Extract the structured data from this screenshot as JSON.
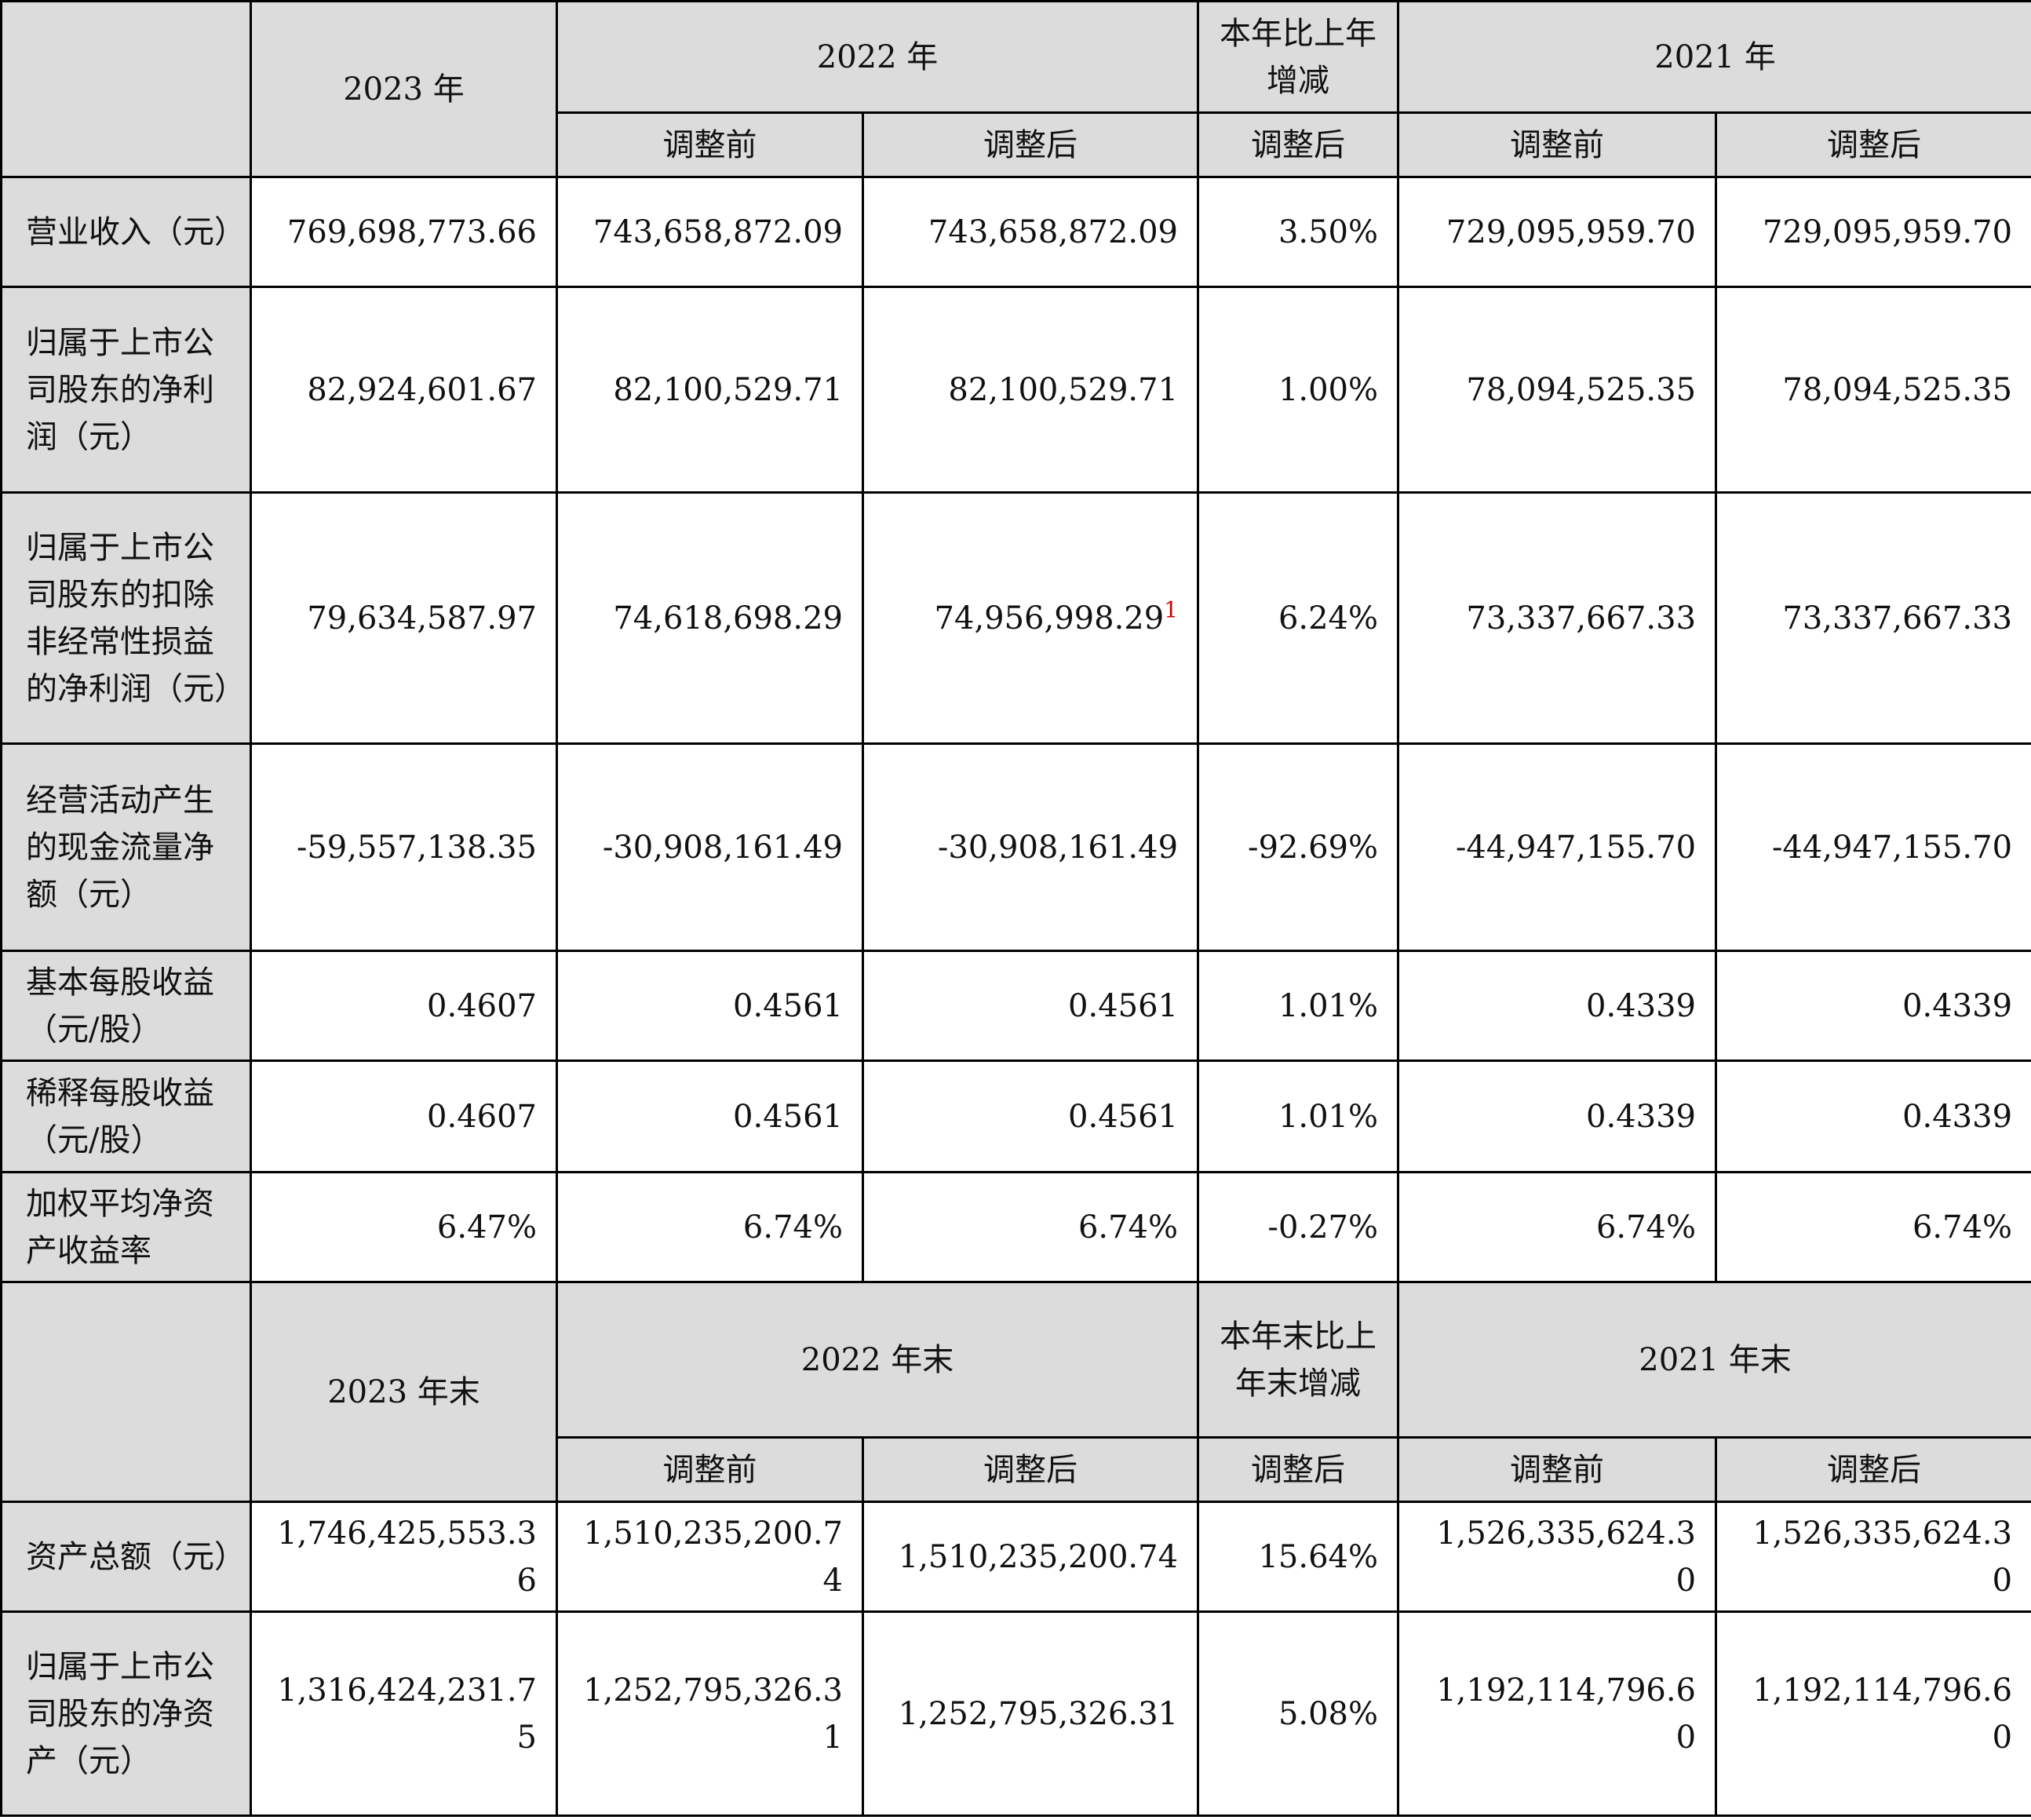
{
  "section1": {
    "header": {
      "y2023": "2023 年",
      "y2022": "2022 年",
      "change": "本年比上年增减",
      "y2021": "2021 年",
      "before": "调整前",
      "after": "调整后"
    },
    "rows": [
      {
        "label": "营业收入（元）",
        "v2023": "769,698,773.66",
        "v2022b": "743,658,872.09",
        "v2022a": "743,658,872.09",
        "chg": "3.50%",
        "v2021b": "729,095,959.70",
        "v2021a": "729,095,959.70"
      },
      {
        "label": "归属于上市公司股东的净利润（元）",
        "v2023": "82,924,601.67",
        "v2022b": "82,100,529.71",
        "v2022a": "82,100,529.71",
        "chg": "1.00%",
        "v2021b": "78,094,525.35",
        "v2021a": "78,094,525.35"
      },
      {
        "label": "归属于上市公司股东的扣除非经常性损益的净利润（元）",
        "v2023": "79,634,587.97",
        "v2022b": "74,618,698.29",
        "v2022a": "74,956,998.29",
        "v2022a_note": "1",
        "chg": "6.24%",
        "v2021b": "73,337,667.33",
        "v2021a": "73,337,667.33"
      },
      {
        "label": "经营活动产生的现金流量净额（元）",
        "v2023": "-59,557,138.35",
        "v2022b": "-30,908,161.49",
        "v2022a": "-30,908,161.49",
        "chg": "-92.69%",
        "v2021b": "-44,947,155.70",
        "v2021a": "-44,947,155.70"
      },
      {
        "label": "基本每股收益（元/股）",
        "v2023": "0.4607",
        "v2022b": "0.4561",
        "v2022a": "0.4561",
        "chg": "1.01%",
        "v2021b": "0.4339",
        "v2021a": "0.4339"
      },
      {
        "label": "稀释每股收益（元/股）",
        "v2023": "0.4607",
        "v2022b": "0.4561",
        "v2022a": "0.4561",
        "chg": "1.01%",
        "v2021b": "0.4339",
        "v2021a": "0.4339"
      },
      {
        "label": "加权平均净资产收益率",
        "v2023": "6.47%",
        "v2022b": "6.74%",
        "v2022a": "6.74%",
        "chg": "-0.27%",
        "v2021b": "6.74%",
        "v2021a": "6.74%"
      }
    ]
  },
  "section2": {
    "header": {
      "y2023": "2023 年末",
      "y2022": "2022 年末",
      "change": "本年末比上年末增减",
      "y2021": "2021 年末",
      "before": "调整前",
      "after": "调整后"
    },
    "rows": [
      {
        "label": "资产总额（元）",
        "v2023": "1,746,425,553.36",
        "v2022b": "1,510,235,200.74",
        "v2022a": "1,510,235,200.74",
        "chg": "15.64%",
        "v2021b": "1,526,335,624.30",
        "v2021a": "1,526,335,624.30"
      },
      {
        "label": "归属于上市公司股东的净资产（元）",
        "v2023": "1,316,424,231.75",
        "v2022b": "1,252,795,326.31",
        "v2022a": "1,252,795,326.31",
        "chg": "5.08%",
        "v2021b": "1,192,114,796.60",
        "v2021a": "1,192,114,796.60"
      }
    ]
  }
}
